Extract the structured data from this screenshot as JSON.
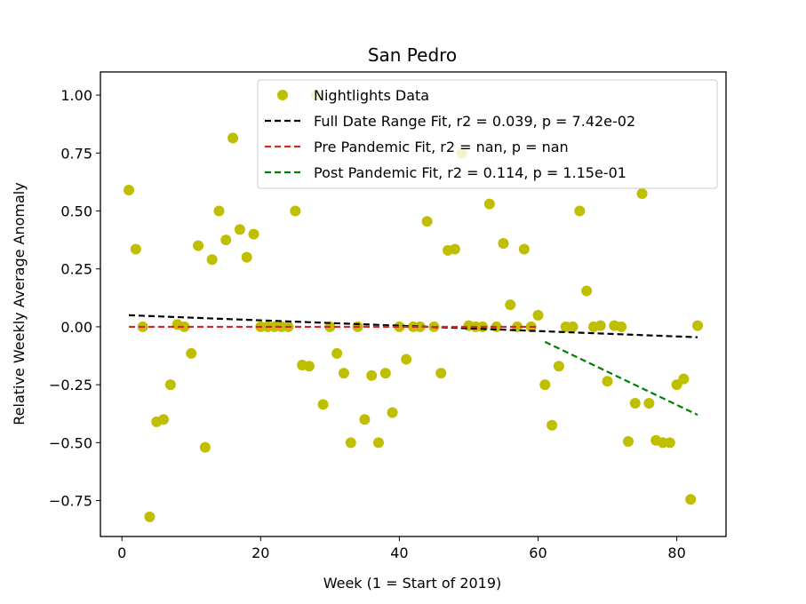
{
  "chart_data": {
    "type": "scatter",
    "title": "San Pedro",
    "xlabel": "Week (1 = Start of 2019)",
    "ylabel": "Relative Weekly Average Anomaly",
    "xlim": [
      -3.1,
      87.1
    ],
    "ylim": [
      -0.905,
      1.1
    ],
    "xticks": [
      0,
      20,
      40,
      60,
      80
    ],
    "yticks": [
      -0.75,
      -0.5,
      -0.25,
      0.0,
      0.25,
      0.5,
      0.75,
      1.0
    ],
    "xtick_labels": [
      "0",
      "20",
      "40",
      "60",
      "80"
    ],
    "ytick_labels": [
      "−0.75",
      "−0.50",
      "−0.25",
      "0.00",
      "0.25",
      "0.50",
      "0.75",
      "1.00"
    ],
    "grid": false,
    "legend_position": "top-right",
    "series": [
      {
        "name": "Nightlights Data",
        "kind": "points",
        "color": "#bfbf00",
        "points": [
          [
            1,
            0.59
          ],
          [
            2,
            0.335
          ],
          [
            3,
            0.0
          ],
          [
            4,
            -0.82
          ],
          [
            5,
            -0.41
          ],
          [
            6,
            -0.4
          ],
          [
            7,
            -0.25
          ],
          [
            8,
            0.01
          ],
          [
            9,
            0.0
          ],
          [
            10,
            -0.115
          ],
          [
            11,
            0.35
          ],
          [
            12,
            -0.52
          ],
          [
            13,
            0.29
          ],
          [
            14,
            0.5
          ],
          [
            15,
            0.375
          ],
          [
            16,
            0.815
          ],
          [
            17,
            0.42
          ],
          [
            18,
            0.3
          ],
          [
            19,
            0.4
          ],
          [
            20,
            0.0
          ],
          [
            21,
            0.0
          ],
          [
            22,
            0.0
          ],
          [
            23,
            0.0
          ],
          [
            24,
            0.0
          ],
          [
            25,
            0.5
          ],
          [
            26,
            -0.165
          ],
          [
            27,
            -0.17
          ],
          [
            28,
            1.0
          ],
          [
            29,
            -0.335
          ],
          [
            30,
            0.0
          ],
          [
            31,
            -0.115
          ],
          [
            32,
            -0.2
          ],
          [
            33,
            -0.5
          ],
          [
            34,
            0.0
          ],
          [
            35,
            -0.4
          ],
          [
            36,
            -0.21
          ],
          [
            37,
            -0.5
          ],
          [
            38,
            -0.2
          ],
          [
            39,
            -0.37
          ],
          [
            40,
            0.0
          ],
          [
            41,
            -0.14
          ],
          [
            42,
            0.0
          ],
          [
            43,
            0.0
          ],
          [
            44,
            0.455
          ],
          [
            45,
            0.0
          ],
          [
            46,
            -0.2
          ],
          [
            47,
            0.33
          ],
          [
            48,
            0.335
          ],
          [
            49,
            0.75
          ],
          [
            50,
            0.005
          ],
          [
            51,
            0.0
          ],
          [
            52,
            0.0
          ],
          [
            53,
            0.53
          ],
          [
            54,
            0.0
          ],
          [
            55,
            0.36
          ],
          [
            56,
            0.095
          ],
          [
            57,
            0.0
          ],
          [
            58,
            0.335
          ],
          [
            59,
            0.0
          ],
          [
            60,
            0.05
          ],
          [
            61,
            -0.25
          ],
          [
            62,
            -0.425
          ],
          [
            63,
            -0.17
          ],
          [
            64,
            0.0
          ],
          [
            65,
            0.0
          ],
          [
            66,
            0.5
          ],
          [
            67,
            0.155
          ],
          [
            68,
            0.0
          ],
          [
            69,
            0.005
          ],
          [
            70,
            -0.235
          ],
          [
            71,
            0.005
          ],
          [
            72,
            0.0
          ],
          [
            73,
            -0.495
          ],
          [
            74,
            -0.33
          ],
          [
            75,
            0.575
          ],
          [
            76,
            -0.33
          ],
          [
            77,
            -0.49
          ],
          [
            78,
            -0.5
          ],
          [
            79,
            -0.5
          ],
          [
            80,
            -0.25
          ],
          [
            81,
            -0.225
          ],
          [
            82,
            -0.745
          ],
          [
            83,
            0.005
          ]
        ]
      },
      {
        "name": "Full Date Range Fit, r2 = 0.039, p = 7.42e-02",
        "kind": "line",
        "color": "#000000",
        "points": [
          [
            1,
            0.05
          ],
          [
            83,
            -0.045
          ]
        ]
      },
      {
        "name": "Pre Pandemic Fit, r2 = nan, p = nan",
        "kind": "line",
        "color": "#d62728",
        "points": [
          [
            1,
            0.0
          ],
          [
            60,
            0.0
          ]
        ]
      },
      {
        "name": "Post Pandemic Fit, r2 = 0.114, p = 1.15e-01",
        "kind": "line",
        "color": "#008000",
        "points": [
          [
            61,
            -0.065
          ],
          [
            83,
            -0.38
          ]
        ]
      }
    ]
  }
}
